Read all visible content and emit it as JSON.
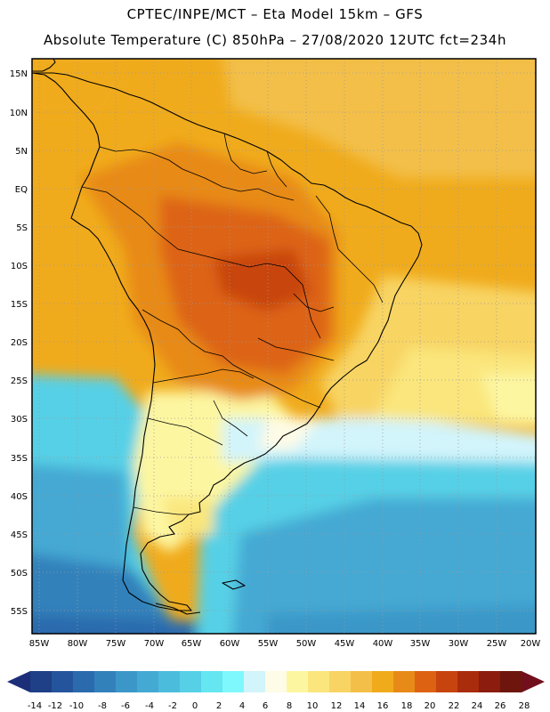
{
  "header": {
    "title_line1": "CPTEC/INPE/MCT –  Eta Model 15km – GFS",
    "title_line2": "Absolute Temperature (C) 850hPa – 27/08/2020 12UTC fct=234h"
  },
  "axes": {
    "lat_labels": [
      "15N",
      "10N",
      "5N",
      "EQ",
      "5S",
      "10S",
      "15S",
      "20S",
      "25S",
      "30S",
      "35S",
      "40S",
      "45S",
      "50S",
      "55S"
    ],
    "lon_labels": [
      "85W",
      "80W",
      "75W",
      "70W",
      "65W",
      "60W",
      "55W",
      "50W",
      "45W",
      "40W",
      "35W",
      "30W",
      "25W",
      "20W"
    ]
  },
  "colorbar": {
    "labels": [
      "-14",
      "-12",
      "-10",
      "-8",
      "-6",
      "-4",
      "-2",
      "0",
      "2",
      "4",
      "6",
      "8",
      "10",
      "12",
      "14",
      "16",
      "18",
      "20",
      "22",
      "24",
      "26",
      "28"
    ],
    "colors": [
      "#1f3f86",
      "#24559c",
      "#2a6aad",
      "#3381bb",
      "#3b97c8",
      "#44a9d3",
      "#4cbcdc",
      "#56d0e6",
      "#66e6f0",
      "#7ff8fd",
      "#d2f4fb",
      "#fefbe6",
      "#fdf6a1",
      "#fae67c",
      "#f8d464",
      "#f3bf48",
      "#f0ab1c",
      "#e88a18",
      "#dd6313",
      "#c8440f",
      "#a92c0c",
      "#8c1c0d",
      "#6e160d"
    ],
    "under_color": "#1c2e78",
    "over_color": "#71101c"
  }
}
